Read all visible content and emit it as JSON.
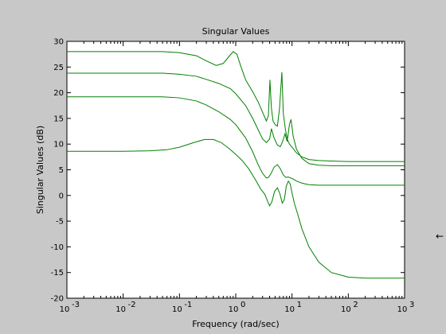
{
  "figure": {
    "background": "#c8c8c8",
    "axes_background": "#ffffff",
    "line_color": "#008000",
    "cursor_glyph": "←"
  },
  "chart_data": {
    "type": "line",
    "title": "Singular Values",
    "xlabel": "Frequency (rad/sec)",
    "ylabel": "Singular Values (dB)",
    "xscale": "log",
    "xlim": [
      0.001,
      1000
    ],
    "ylim": [
      -20,
      30
    ],
    "grid": false,
    "legend": "none",
    "x_ticks": [
      {
        "value": 0.001,
        "base": "10",
        "exp": "-3"
      },
      {
        "value": 0.01,
        "base": "10",
        "exp": "-2"
      },
      {
        "value": 0.1,
        "base": "10",
        "exp": "-1"
      },
      {
        "value": 1,
        "base": "10",
        "exp": "0"
      },
      {
        "value": 10,
        "base": "10",
        "exp": "1"
      },
      {
        "value": 100,
        "base": "10",
        "exp": "2"
      },
      {
        "value": 1000,
        "base": "10",
        "exp": "3"
      }
    ],
    "y_ticks": [
      -20,
      -15,
      -10,
      -5,
      0,
      5,
      10,
      15,
      20,
      25,
      30
    ],
    "series": [
      {
        "x": [
          0.001,
          0.01,
          0.05,
          0.1,
          0.2,
          0.3,
          0.45,
          0.6,
          0.75,
          0.9,
          1.05,
          1.2,
          1.5,
          2,
          2.5,
          3,
          3.5,
          3.8,
          4.05,
          4.3,
          4.6,
          5,
          5.5,
          6,
          6.6,
          7,
          7.6,
          8.2,
          9,
          10,
          12,
          15,
          20,
          30,
          50,
          100,
          300,
          1000
        ],
        "values": [
          28,
          28,
          28,
          27.8,
          27.2,
          26.2,
          25.3,
          25.7,
          27,
          28,
          27.5,
          25.5,
          22.5,
          20.2,
          18.2,
          16.2,
          14.5,
          15.5,
          22.5,
          17,
          14.5,
          13.8,
          13.5,
          17,
          24,
          16,
          13,
          11,
          10,
          9.4,
          8.3,
          7.5,
          7,
          6.8,
          6.7,
          6.6,
          6.6,
          6.6
        ]
      },
      {
        "x": [
          0.001,
          0.01,
          0.05,
          0.1,
          0.2,
          0.3,
          0.5,
          0.8,
          1,
          1.5,
          2,
          2.5,
          3,
          3.5,
          4,
          4.3,
          4.8,
          5.5,
          6.2,
          6.8,
          7.5,
          8.2,
          9,
          9.6,
          10.5,
          12,
          15,
          20,
          30,
          50,
          100,
          300,
          1000
        ],
        "values": [
          23.8,
          23.8,
          23.8,
          23.6,
          23.2,
          22.6,
          21.8,
          20.8,
          19.8,
          17.5,
          15,
          12.8,
          11,
          10.3,
          11,
          13,
          11.2,
          9.8,
          9.5,
          10.5,
          12,
          10.5,
          13.8,
          14.8,
          11.5,
          9,
          7.2,
          6.2,
          5.9,
          5.8,
          5.8,
          5.8,
          5.8
        ]
      },
      {
        "x": [
          0.001,
          0.01,
          0.05,
          0.1,
          0.2,
          0.3,
          0.5,
          0.8,
          1,
          1.5,
          2,
          2.5,
          3,
          3.5,
          3.8,
          4.2,
          4.8,
          5.5,
          6.2,
          7,
          7.8,
          8.5,
          9.5,
          10.5,
          12,
          15,
          20,
          30,
          50,
          100,
          300,
          1000
        ],
        "values": [
          19.2,
          19.2,
          19.2,
          19,
          18.4,
          17.6,
          16.3,
          14.8,
          13.8,
          11.2,
          8.5,
          6,
          4.3,
          3.4,
          3.5,
          4.2,
          5.5,
          6,
          5.2,
          4,
          3.5,
          3.6,
          3.4,
          3.2,
          2.8,
          2.4,
          2.1,
          2,
          2,
          2,
          2,
          2
        ]
      },
      {
        "x": [
          0.001,
          0.01,
          0.03,
          0.06,
          0.1,
          0.18,
          0.28,
          0.4,
          0.55,
          0.75,
          1,
          1.3,
          1.7,
          2.2,
          2.8,
          3.3,
          3.7,
          4,
          4.4,
          4.9,
          5.5,
          6.1,
          6.7,
          7.3,
          7.9,
          8.6,
          9.3,
          10,
          11,
          12.5,
          15,
          20,
          30,
          50,
          100,
          200,
          500,
          1000
        ],
        "values": [
          8.6,
          8.6,
          8.7,
          8.9,
          9.4,
          10.3,
          10.9,
          10.9,
          10.3,
          9.2,
          8,
          6.8,
          5.2,
          3.2,
          1.2,
          0.2,
          -1.2,
          -2,
          -1.2,
          0.8,
          1.5,
          0.3,
          -1.5,
          -0.8,
          1.8,
          2.8,
          2.2,
          0.5,
          -1.5,
          -3.5,
          -6.5,
          -10,
          -13,
          -15,
          -15.9,
          -16.1,
          -16.1,
          -16.1
        ]
      }
    ]
  }
}
